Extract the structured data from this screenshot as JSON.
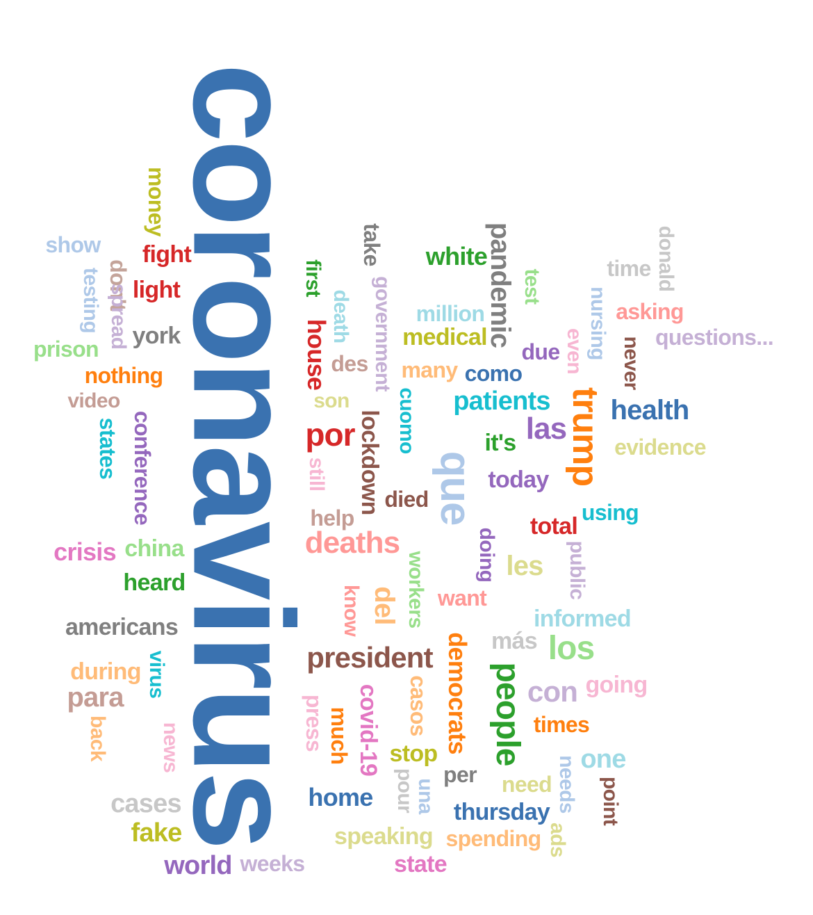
{
  "words": [
    {
      "text": "coronavirus",
      "color": "#3a72b0",
      "orientation": "vertical"
    },
    {
      "text": "show",
      "color": "#aec8e8",
      "orientation": "horizontal"
    },
    {
      "text": "don't",
      "color": "#c4a49a",
      "orientation": "vertical"
    },
    {
      "text": "money",
      "color": "#bcbd22",
      "orientation": "vertical"
    },
    {
      "text": "fight",
      "color": "#d62728",
      "orientation": "horizontal"
    },
    {
      "text": "light",
      "color": "#d62728",
      "orientation": "horizontal"
    },
    {
      "text": "testing",
      "color": "#aec8e8",
      "orientation": "vertical"
    },
    {
      "text": "spread",
      "color": "#c5b0d5",
      "orientation": "vertical"
    },
    {
      "text": "york",
      "color": "#7f7f7f",
      "orientation": "horizontal"
    },
    {
      "text": "prison",
      "color": "#98df8a",
      "orientation": "horizontal"
    },
    {
      "text": "nothing",
      "color": "#ff7f0e",
      "orientation": "horizontal"
    },
    {
      "text": "video",
      "color": "#c49c94",
      "orientation": "horizontal"
    },
    {
      "text": "states",
      "color": "#17becf",
      "orientation": "vertical"
    },
    {
      "text": "conference",
      "color": "#9467bd",
      "orientation": "vertical"
    },
    {
      "text": "crisis",
      "color": "#e377c2",
      "orientation": "horizontal"
    },
    {
      "text": "china",
      "color": "#98df8a",
      "orientation": "horizontal"
    },
    {
      "text": "heard",
      "color": "#2ca02c",
      "orientation": "horizontal"
    },
    {
      "text": "americans",
      "color": "#7f7f7f",
      "orientation": "horizontal"
    },
    {
      "text": "virus",
      "color": "#17becf",
      "orientation": "vertical"
    },
    {
      "text": "during",
      "color": "#ffbb78",
      "orientation": "horizontal"
    },
    {
      "text": "para",
      "color": "#c49c94",
      "orientation": "horizontal"
    },
    {
      "text": "back",
      "color": "#ffbb78",
      "orientation": "vertical"
    },
    {
      "text": "news",
      "color": "#f7b6d2",
      "orientation": "vertical"
    },
    {
      "text": "cases",
      "color": "#c7c7c7",
      "orientation": "horizontal"
    },
    {
      "text": "fake",
      "color": "#bcbd22",
      "orientation": "horizontal"
    },
    {
      "text": "world",
      "color": "#9467bd",
      "orientation": "horizontal"
    },
    {
      "text": "weeks",
      "color": "#c5b0d5",
      "orientation": "horizontal"
    },
    {
      "text": "take",
      "color": "#7f7f7f",
      "orientation": "vertical"
    },
    {
      "text": "first",
      "color": "#2ca02c",
      "orientation": "vertical"
    },
    {
      "text": "house",
      "color": "#d62728",
      "orientation": "vertical"
    },
    {
      "text": "death",
      "color": "#9edae5",
      "orientation": "vertical"
    },
    {
      "text": "government",
      "color": "#c5b0d5",
      "orientation": "vertical"
    },
    {
      "text": "des",
      "color": "#c49c94",
      "orientation": "horizontal"
    },
    {
      "text": "son",
      "color": "#dbdb8d",
      "orientation": "horizontal"
    },
    {
      "text": "por",
      "color": "#d62728",
      "orientation": "horizontal"
    },
    {
      "text": "still",
      "color": "#f7b6d2",
      "orientation": "vertical"
    },
    {
      "text": "lockdown",
      "color": "#8c564b",
      "orientation": "vertical"
    },
    {
      "text": "cuomo",
      "color": "#17becf",
      "orientation": "vertical"
    },
    {
      "text": "help",
      "color": "#c49c94",
      "orientation": "horizontal"
    },
    {
      "text": "died",
      "color": "#8c564b",
      "orientation": "horizontal"
    },
    {
      "text": "deaths",
      "color": "#ff9896",
      "orientation": "horizontal"
    },
    {
      "text": "workers",
      "color": "#98df8a",
      "orientation": "vertical"
    },
    {
      "text": "know",
      "color": "#ff9896",
      "orientation": "vertical"
    },
    {
      "text": "del",
      "color": "#ffbb78",
      "orientation": "vertical"
    },
    {
      "text": "president",
      "color": "#8c564b",
      "orientation": "horizontal"
    },
    {
      "text": "press",
      "color": "#f7b6d2",
      "orientation": "vertical"
    },
    {
      "text": "covid-19",
      "color": "#e377c2",
      "orientation": "vertical"
    },
    {
      "text": "much",
      "color": "#ff7f0e",
      "orientation": "vertical"
    },
    {
      "text": "casos",
      "color": "#ffbb78",
      "orientation": "vertical"
    },
    {
      "text": "home",
      "color": "#3a72b0",
      "orientation": "horizontal"
    },
    {
      "text": "pour",
      "color": "#c7c7c7",
      "orientation": "vertical"
    },
    {
      "text": "una",
      "color": "#aec8e8",
      "orientation": "vertical"
    },
    {
      "text": "stop",
      "color": "#bcbd22",
      "orientation": "horizontal"
    },
    {
      "text": "speaking",
      "color": "#dbdb8d",
      "orientation": "horizontal"
    },
    {
      "text": "state",
      "color": "#e377c2",
      "orientation": "horizontal"
    },
    {
      "text": "white",
      "color": "#2ca02c",
      "orientation": "horizontal"
    },
    {
      "text": "pandemic",
      "color": "#7f7f7f",
      "orientation": "vertical"
    },
    {
      "text": "million",
      "color": "#9edae5",
      "orientation": "horizontal"
    },
    {
      "text": "medical",
      "color": "#bcbd22",
      "orientation": "horizontal"
    },
    {
      "text": "many",
      "color": "#ffbb78",
      "orientation": "horizontal"
    },
    {
      "text": "como",
      "color": "#3a72b0",
      "orientation": "horizontal"
    },
    {
      "text": "test",
      "color": "#98df8a",
      "orientation": "vertical"
    },
    {
      "text": "due",
      "color": "#9467bd",
      "orientation": "horizontal"
    },
    {
      "text": "even",
      "color": "#f7b6d2",
      "orientation": "vertical"
    },
    {
      "text": "patients",
      "color": "#17becf",
      "orientation": "horizontal"
    },
    {
      "text": "que",
      "color": "#aec8e8",
      "orientation": "vertical"
    },
    {
      "text": "las",
      "color": "#9467bd",
      "orientation": "horizontal"
    },
    {
      "text": "it's",
      "color": "#2ca02c",
      "orientation": "horizontal"
    },
    {
      "text": "today",
      "color": "#9467bd",
      "orientation": "horizontal"
    },
    {
      "text": "trump",
      "color": "#ff7f0e",
      "orientation": "vertical"
    },
    {
      "text": "doing",
      "color": "#9467bd",
      "orientation": "vertical"
    },
    {
      "text": "les",
      "color": "#dbdb8d",
      "orientation": "horizontal"
    },
    {
      "text": "want",
      "color": "#ff9896",
      "orientation": "horizontal"
    },
    {
      "text": "total",
      "color": "#d62728",
      "orientation": "horizontal"
    },
    {
      "text": "public",
      "color": "#c5b0d5",
      "orientation": "vertical"
    },
    {
      "text": "informed",
      "color": "#9edae5",
      "orientation": "horizontal"
    },
    {
      "text": "más",
      "color": "#c7c7c7",
      "orientation": "horizontal"
    },
    {
      "text": "los",
      "color": "#98df8a",
      "orientation": "horizontal"
    },
    {
      "text": "democrats",
      "color": "#ff7f0e",
      "orientation": "vertical"
    },
    {
      "text": "people",
      "color": "#2ca02c",
      "orientation": "vertical"
    },
    {
      "text": "con",
      "color": "#c5b0d5",
      "orientation": "horizontal"
    },
    {
      "text": "going",
      "color": "#f7b6d2",
      "orientation": "horizontal"
    },
    {
      "text": "times",
      "color": "#ff7f0e",
      "orientation": "horizontal"
    },
    {
      "text": "one",
      "color": "#9edae5",
      "orientation": "horizontal"
    },
    {
      "text": "per",
      "color": "#7f7f7f",
      "orientation": "horizontal"
    },
    {
      "text": "need",
      "color": "#dbdb8d",
      "orientation": "horizontal"
    },
    {
      "text": "needs",
      "color": "#aec8e8",
      "orientation": "vertical"
    },
    {
      "text": "point",
      "color": "#8c564b",
      "orientation": "vertical"
    },
    {
      "text": "thursday",
      "color": "#3a72b0",
      "orientation": "horizontal"
    },
    {
      "text": "spending",
      "color": "#ffbb78",
      "orientation": "horizontal"
    },
    {
      "text": "ads",
      "color": "#dbdb8d",
      "orientation": "vertical"
    },
    {
      "text": "time",
      "color": "#c7c7c7",
      "orientation": "horizontal"
    },
    {
      "text": "donald",
      "color": "#c7c7c7",
      "orientation": "vertical"
    },
    {
      "text": "nursing",
      "color": "#aec8e8",
      "orientation": "vertical"
    },
    {
      "text": "asking",
      "color": "#ff9896",
      "orientation": "horizontal"
    },
    {
      "text": "questions...",
      "color": "#c5b0d5",
      "orientation": "horizontal"
    },
    {
      "text": "never",
      "color": "#8c564b",
      "orientation": "vertical"
    },
    {
      "text": "health",
      "color": "#3a72b0",
      "orientation": "horizontal"
    },
    {
      "text": "evidence",
      "color": "#dbdb8d",
      "orientation": "horizontal"
    },
    {
      "text": "using",
      "color": "#17becf",
      "orientation": "horizontal"
    }
  ]
}
